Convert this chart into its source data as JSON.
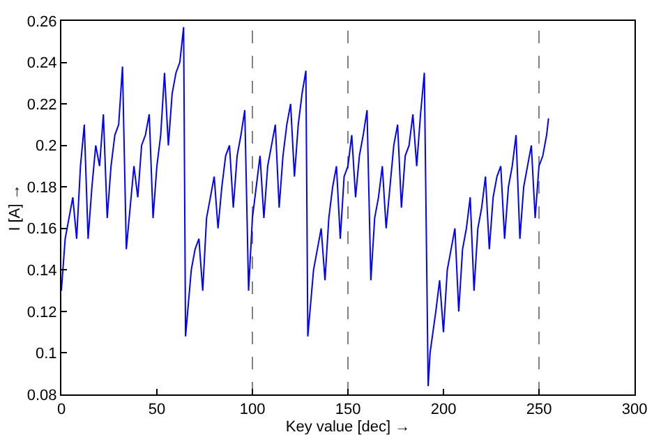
{
  "chart_data": {
    "type": "line",
    "xlabel": "Key value [dec] →",
    "ylabel": "I [A] →",
    "xlim": [
      0,
      300
    ],
    "xticks": [
      0,
      50,
      100,
      150,
      200,
      250,
      300
    ],
    "ylim": [
      0.08,
      0.26
    ],
    "yticks": [
      0.08,
      0.1,
      0.12,
      0.14,
      0.16,
      0.18,
      0.2,
      0.22,
      0.24,
      0.26
    ],
    "grid": false,
    "marker": "none",
    "line_style": "solid",
    "ref_lines": [
      {
        "axis": "x",
        "value": 100,
        "color": "#808080",
        "line_style": "dashed"
      },
      {
        "axis": "x",
        "value": 150,
        "color": "#808080",
        "line_style": "dashed"
      },
      {
        "axis": "x",
        "value": 250,
        "color": "#808080",
        "line_style": "dashed"
      }
    ],
    "series": [
      {
        "color": "#0000ff",
        "x": [
          0,
          2,
          4,
          6,
          8,
          10,
          12,
          14,
          16,
          18,
          20,
          22,
          24,
          26,
          28,
          30,
          32,
          34,
          36,
          38,
          40,
          42,
          44,
          46,
          48,
          50,
          52,
          54,
          56,
          58,
          60,
          62,
          64,
          65,
          68,
          70,
          72,
          74,
          76,
          78,
          80,
          82,
          84,
          86,
          88,
          90,
          92,
          94,
          96,
          98,
          100,
          102,
          104,
          106,
          108,
          110,
          112,
          114,
          116,
          118,
          120,
          122,
          124,
          126,
          128,
          129,
          132,
          134,
          136,
          138,
          140,
          142,
          144,
          146,
          148,
          150,
          152,
          154,
          156,
          158,
          160,
          162,
          164,
          166,
          168,
          170,
          172,
          174,
          176,
          178,
          180,
          182,
          184,
          186,
          188,
          190,
          192,
          193,
          196,
          198,
          200,
          202,
          204,
          206,
          208,
          210,
          212,
          214,
          216,
          218,
          220,
          222,
          224,
          226,
          228,
          230,
          232,
          234,
          236,
          238,
          240,
          242,
          244,
          246,
          248,
          250,
          252,
          254,
          255
        ],
        "values": [
          0.13,
          0.155,
          0.165,
          0.175,
          0.155,
          0.19,
          0.21,
          0.155,
          0.18,
          0.2,
          0.19,
          0.215,
          0.165,
          0.19,
          0.205,
          0.21,
          0.238,
          0.15,
          0.17,
          0.19,
          0.175,
          0.2,
          0.205,
          0.215,
          0.165,
          0.19,
          0.205,
          0.235,
          0.2,
          0.225,
          0.235,
          0.24,
          0.257,
          0.108,
          0.14,
          0.15,
          0.155,
          0.13,
          0.165,
          0.175,
          0.185,
          0.16,
          0.18,
          0.195,
          0.2,
          0.17,
          0.195,
          0.205,
          0.217,
          0.13,
          0.165,
          0.18,
          0.195,
          0.165,
          0.19,
          0.2,
          0.21,
          0.17,
          0.195,
          0.21,
          0.22,
          0.185,
          0.21,
          0.225,
          0.236,
          0.108,
          0.14,
          0.15,
          0.16,
          0.135,
          0.165,
          0.18,
          0.19,
          0.155,
          0.185,
          0.19,
          0.205,
          0.175,
          0.195,
          0.205,
          0.217,
          0.135,
          0.165,
          0.175,
          0.19,
          0.16,
          0.18,
          0.2,
          0.21,
          0.17,
          0.195,
          0.2,
          0.215,
          0.19,
          0.215,
          0.235,
          0.084,
          0.1,
          0.12,
          0.135,
          0.11,
          0.14,
          0.15,
          0.16,
          0.12,
          0.15,
          0.16,
          0.175,
          0.13,
          0.16,
          0.17,
          0.185,
          0.15,
          0.175,
          0.185,
          0.19,
          0.155,
          0.18,
          0.19,
          0.205,
          0.155,
          0.18,
          0.19,
          0.2,
          0.165,
          0.19,
          0.195,
          0.205,
          0.213
        ]
      }
    ]
  }
}
